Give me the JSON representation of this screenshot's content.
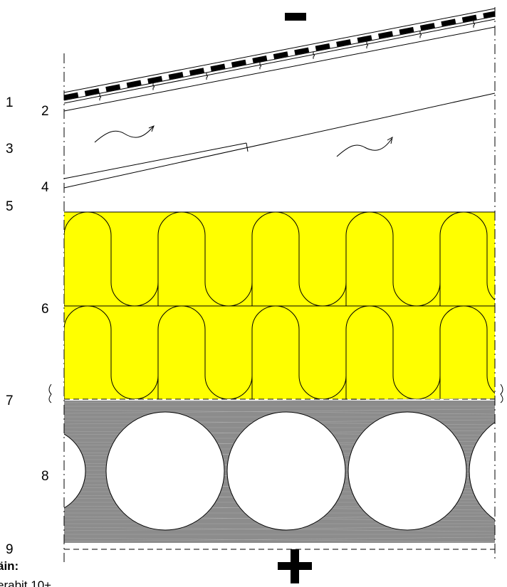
{
  "labels": [
    "1",
    "2",
    "3",
    "4",
    "5",
    "6",
    "7",
    "8",
    "9"
  ],
  "signs": {
    "outside": "minus-sign",
    "inside": "plus-sign"
  },
  "colors": {
    "insulation": "#ffff00",
    "slab": "#8c8c8c",
    "line": "#000000"
  },
  "footer": {
    "line1": "äin:",
    "line2": "erabit 10+"
  }
}
